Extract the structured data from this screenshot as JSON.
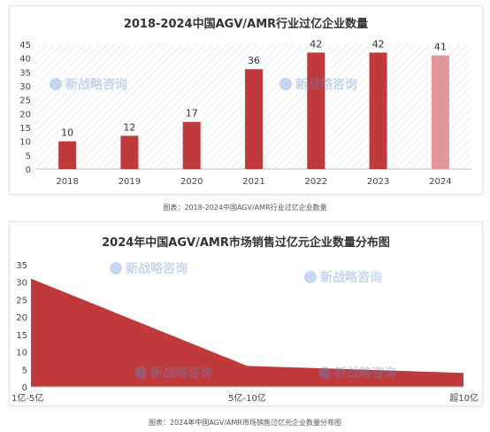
{
  "chart_data": [
    {
      "type": "bar",
      "title": "2018-2024中国AGV/AMR行业过亿企业数量",
      "categories": [
        "2018",
        "2019",
        "2020",
        "2021",
        "2022",
        "2023",
        "2024"
      ],
      "values": [
        10,
        12,
        17,
        36,
        42,
        42,
        41
      ],
      "ylim": [
        0,
        45
      ],
      "yticks": [
        0,
        5,
        10,
        15,
        20,
        25,
        30,
        35,
        40,
        45
      ],
      "grid": false,
      "bar_color": "#c0393b",
      "highlight_color": "#e3979a",
      "highlight_index": 6
    },
    {
      "type": "area",
      "title": "2024年中国AGV/AMR市场销售过亿元企业数量分布图",
      "categories": [
        "1亿-5亿",
        "5亿-10亿",
        "超10亿"
      ],
      "values": [
        31,
        6,
        4
      ],
      "ylim": [
        0,
        35
      ],
      "yticks": [
        0,
        5,
        10,
        15,
        20,
        25,
        30,
        35
      ],
      "grid": false,
      "fill_color": "#c0393b"
    }
  ],
  "captions": [
    "图表：2018-2024中国AGV/AMR行业过亿企业数量",
    "图表：2024年中国AGV/AMR市场销售过亿元企业数量分布图"
  ],
  "watermark": {
    "text": "新战略咨询",
    "color": "#5a8fd6"
  }
}
